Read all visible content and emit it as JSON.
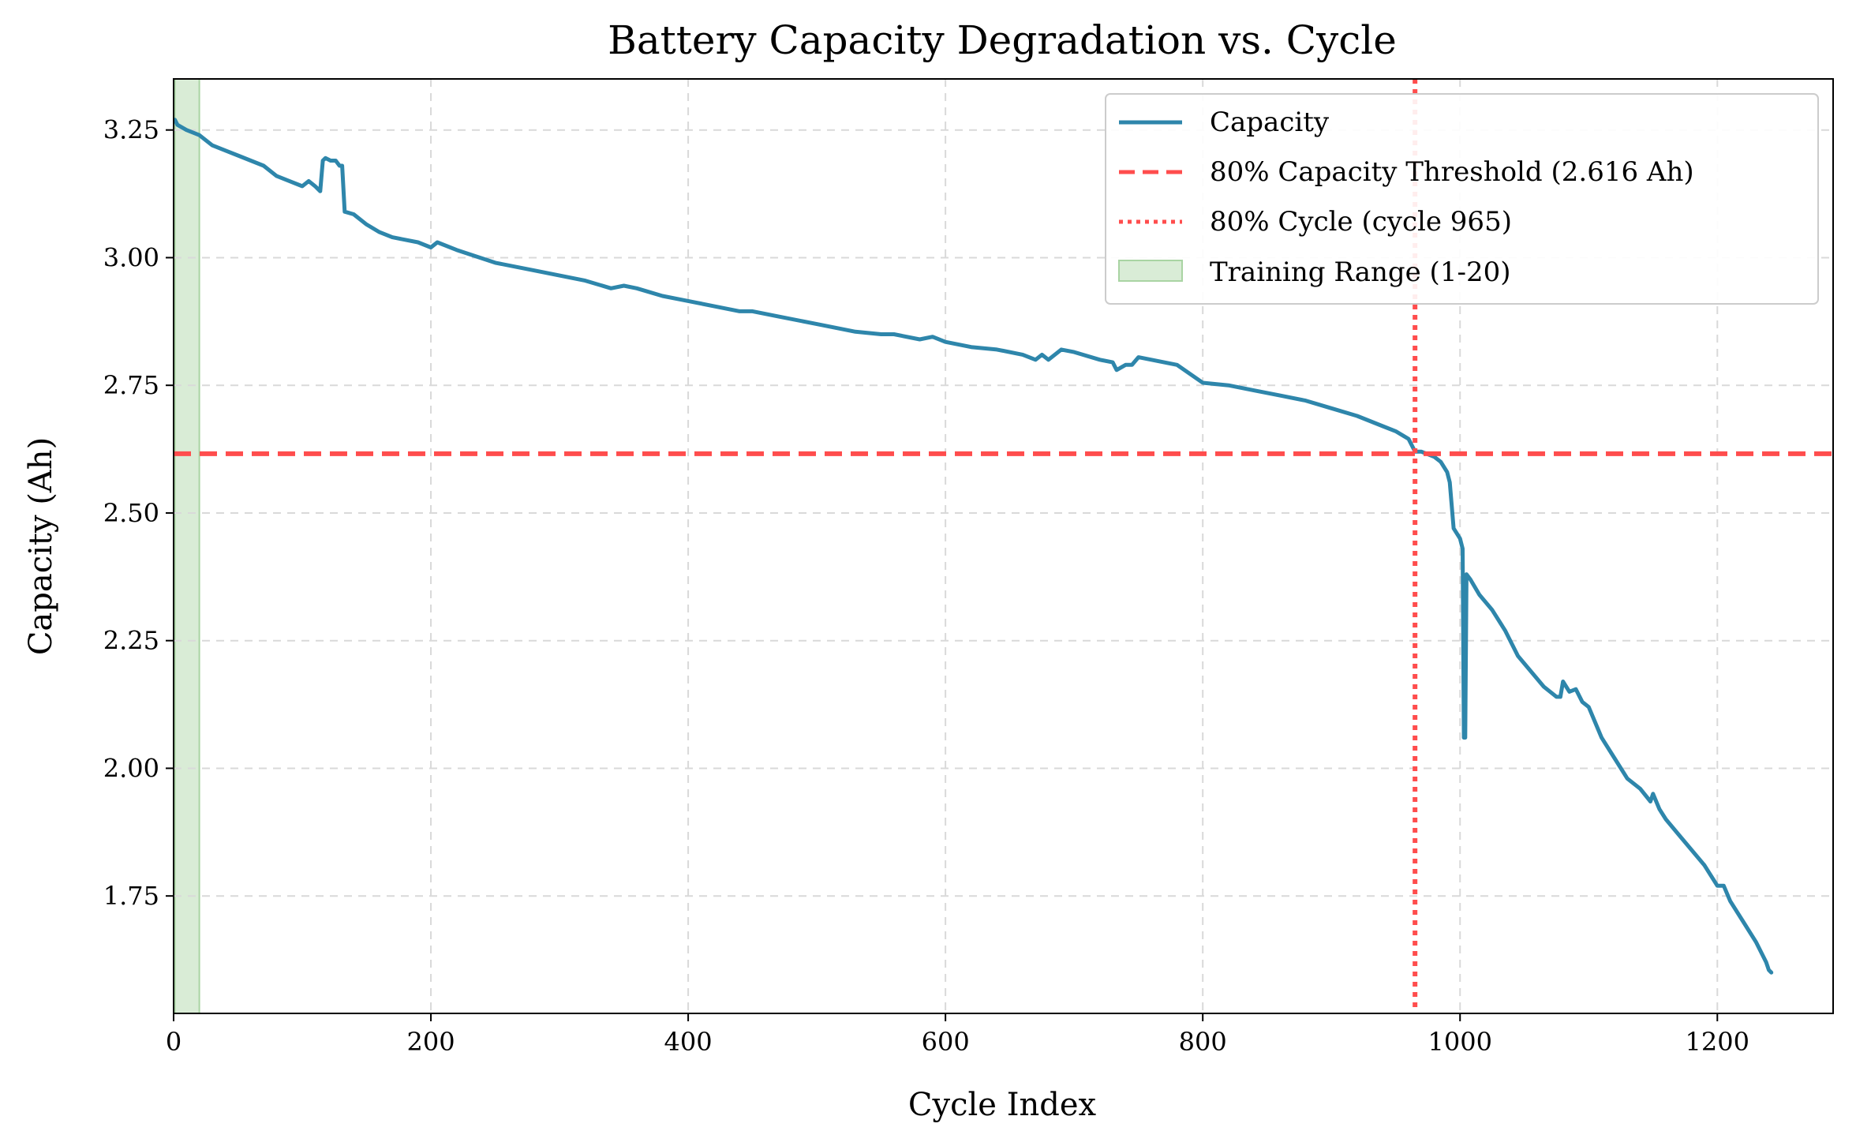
{
  "chart_data": {
    "type": "line",
    "title": "Battery Capacity Degradation vs. Cycle",
    "xlabel": "Cycle Index",
    "ylabel": "Capacity (Ah)",
    "xlim": [
      0,
      1290
    ],
    "ylim": [
      1.52,
      3.35
    ],
    "x_ticks": [
      0,
      200,
      400,
      600,
      800,
      1000,
      1200
    ],
    "y_ticks": [
      1.75,
      2.0,
      2.25,
      2.5,
      2.75,
      3.0,
      3.25
    ],
    "x_tick_labels": [
      "0",
      "200",
      "400",
      "600",
      "800",
      "1000",
      "1200"
    ],
    "y_tick_labels": [
      "1.75",
      "2.00",
      "2.25",
      "2.50",
      "2.75",
      "3.00",
      "3.25"
    ],
    "grid": true,
    "legend_position": "top-right",
    "series": [
      {
        "name": "Capacity",
        "color": "#2e86ab",
        "x": [
          1,
          3,
          10,
          20,
          30,
          40,
          50,
          60,
          70,
          80,
          90,
          100,
          105,
          110,
          114,
          116,
          118,
          122,
          126,
          129,
          131,
          133,
          140,
          150,
          160,
          170,
          180,
          190,
          200,
          205,
          220,
          250,
          280,
          300,
          320,
          340,
          350,
          360,
          380,
          400,
          420,
          440,
          450,
          470,
          500,
          530,
          550,
          560,
          580,
          590,
          600,
          620,
          640,
          660,
          670,
          675,
          680,
          690,
          700,
          720,
          730,
          733,
          740,
          745,
          750,
          770,
          780,
          800,
          820,
          840,
          860,
          880,
          900,
          920,
          940,
          950,
          960,
          965,
          970,
          980,
          985,
          990,
          992,
          995,
          1000,
          1002,
          1003,
          1004,
          1005,
          1008,
          1015,
          1025,
          1035,
          1045,
          1055,
          1065,
          1075,
          1078,
          1080,
          1085,
          1090,
          1095,
          1100,
          1110,
          1120,
          1130,
          1140,
          1148,
          1150,
          1155,
          1160,
          1170,
          1180,
          1190,
          1195,
          1200,
          1205,
          1210,
          1220,
          1230,
          1238,
          1240,
          1242
        ],
        "values": [
          3.27,
          3.26,
          3.25,
          3.24,
          3.22,
          3.21,
          3.2,
          3.19,
          3.18,
          3.16,
          3.15,
          3.14,
          3.15,
          3.14,
          3.13,
          3.19,
          3.195,
          3.19,
          3.19,
          3.18,
          3.18,
          3.09,
          3.085,
          3.065,
          3.05,
          3.04,
          3.035,
          3.03,
          3.02,
          3.03,
          3.015,
          2.99,
          2.975,
          2.965,
          2.955,
          2.94,
          2.945,
          2.94,
          2.925,
          2.915,
          2.905,
          2.895,
          2.895,
          2.885,
          2.87,
          2.855,
          2.85,
          2.85,
          2.84,
          2.845,
          2.835,
          2.825,
          2.82,
          2.81,
          2.8,
          2.81,
          2.8,
          2.82,
          2.815,
          2.8,
          2.795,
          2.78,
          2.79,
          2.79,
          2.805,
          2.795,
          2.79,
          2.755,
          2.75,
          2.74,
          2.73,
          2.72,
          2.705,
          2.69,
          2.67,
          2.66,
          2.645,
          2.62,
          2.62,
          2.61,
          2.6,
          2.58,
          2.56,
          2.47,
          2.45,
          2.43,
          2.06,
          2.06,
          2.38,
          2.37,
          2.34,
          2.31,
          2.27,
          2.22,
          2.19,
          2.16,
          2.14,
          2.14,
          2.17,
          2.15,
          2.155,
          2.13,
          2.12,
          2.06,
          2.02,
          1.98,
          1.96,
          1.935,
          1.95,
          1.92,
          1.9,
          1.87,
          1.84,
          1.81,
          1.79,
          1.77,
          1.77,
          1.74,
          1.7,
          1.66,
          1.62,
          1.605,
          1.6
        ]
      }
    ],
    "threshold_line": {
      "label": "80% Capacity Threshold (2.616 Ah)",
      "y": 2.616,
      "color": "#ff4d4d",
      "style": "dashed"
    },
    "cycle_line": {
      "label": "80% Cycle (cycle 965)",
      "x": 965,
      "color": "#ff4d4d",
      "style": "dotted"
    },
    "training_range": {
      "label": "Training Range (1-20)",
      "x_start": 1,
      "x_end": 20,
      "color": "#d9ecd6"
    }
  }
}
